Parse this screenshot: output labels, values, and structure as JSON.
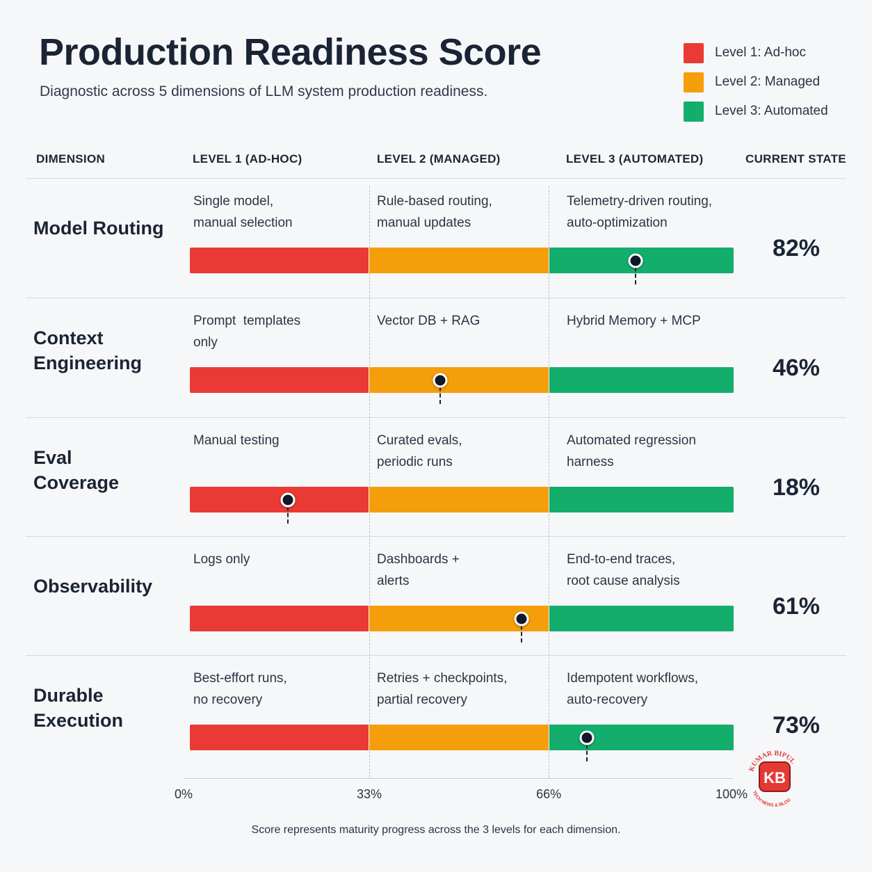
{
  "title": "Production Readiness Score",
  "subtitle": "Diagnostic across 5 dimensions of LLM system production readiness.",
  "legend": [
    {
      "label": "Level 1: Ad-hoc",
      "color": "#ea3a36"
    },
    {
      "label": "Level 2: Managed",
      "color": "#f59e0b"
    },
    {
      "label": "Level 3: Automated",
      "color": "#13ad6c"
    }
  ],
  "headers": {
    "dimension": "DIMENSION",
    "level1": "LEVEL 1 (AD-HOC)",
    "level2": "LEVEL 2 (MANAGED)",
    "level3": "LEVEL 3 (AUTOMATED)",
    "current": "CURRENT STATE"
  },
  "rows": [
    {
      "name": "Model Routing",
      "l1": "Single model,\nmanual selection",
      "l2": "Rule-based routing,\nmanual updates",
      "l3": "Telemetry-driven routing,\nauto-optimization",
      "score_label": "82%"
    },
    {
      "name": "Context\nEngineering",
      "l1": "Prompt  templates\nonly",
      "l2": "Vector DB + RAG",
      "l3": "Hybrid Memory + MCP",
      "score_label": "46%"
    },
    {
      "name": "Eval\nCoverage",
      "l1": "Manual testing",
      "l2": "Curated evals,\nperiodic runs",
      "l3": "Automated regression\nharness",
      "score_label": "18%"
    },
    {
      "name": "Observability",
      "l1": "Logs only",
      "l2": "Dashboards +\nalerts",
      "l3": "End-to-end traces,\nroot cause analysis",
      "score_label": "61%"
    },
    {
      "name": "Durable\nExecution",
      "l1": "Best-effort runs,\nno recovery",
      "l2": "Retries + checkpoints,\npartial recovery",
      "l3": "Idempotent workflows,\nauto-recovery",
      "score_label": "73%"
    }
  ],
  "chart_data": {
    "type": "bar",
    "categories": [
      "Model Routing",
      "Context Engineering",
      "Eval Coverage",
      "Observability",
      "Durable Execution"
    ],
    "values": [
      82,
      46,
      18,
      61,
      73
    ],
    "xlim": [
      0,
      100
    ],
    "level_boundaries": [
      33,
      66
    ],
    "ticks": [
      "0%",
      "33%",
      "66%",
      "100%"
    ],
    "legend_position": "top-right"
  },
  "footnote": "Score represents maturity progress across the 3 levels for each dimension.",
  "logo": {
    "text_top": "KUMAR BIPUL",
    "monogram": "KB",
    "text_bottom": "TECH NEWS & BLOG",
    "color": "#e53935"
  }
}
